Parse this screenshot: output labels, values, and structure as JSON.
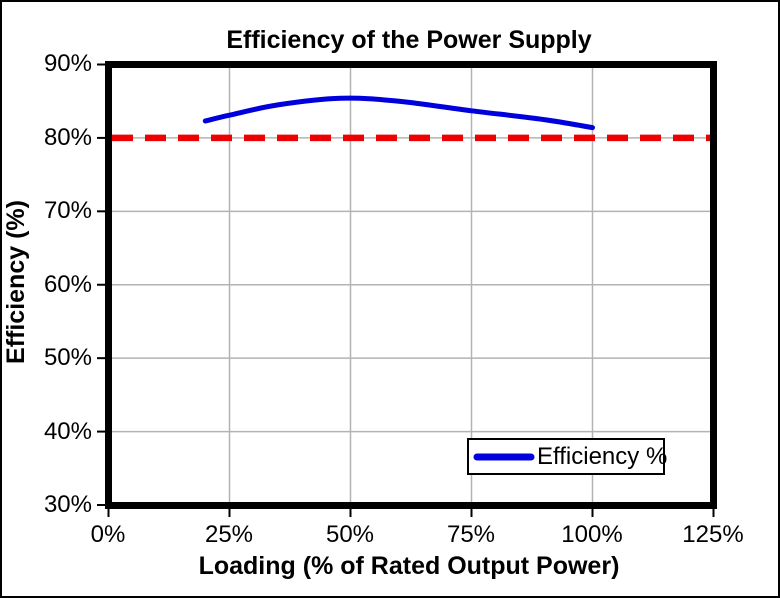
{
  "chart_data": {
    "type": "line",
    "title": "Efficiency of the Power Supply",
    "xlabel": "Loading (% of Rated Output Power)",
    "ylabel": "Efficiency (%)",
    "xlim": [
      0,
      125
    ],
    "ylim": [
      30,
      90
    ],
    "xticks": [
      "0%",
      "25%",
      "50%",
      "75%",
      "100%",
      "125%"
    ],
    "xtick_values": [
      0,
      25,
      50,
      75,
      100,
      125
    ],
    "yticks": [
      "90%",
      "80%",
      "70%",
      "60%",
      "50%",
      "40%",
      "30%"
    ],
    "ytick_values": [
      90,
      80,
      70,
      60,
      50,
      40,
      30
    ],
    "grid": true,
    "gridline_color": "#B3B3B3",
    "plot_border_color": "#000000",
    "background_color": "#FFFFFF",
    "legend": {
      "position": "bottom-right-inside",
      "entries": [
        "Efficiency %"
      ]
    },
    "series": [
      {
        "name": "Efficiency %",
        "type": "smooth-line",
        "color": "#0000DD",
        "stroke_width": 5,
        "points": [
          {
            "x": 20,
            "y": 82.3
          },
          {
            "x": 25,
            "y": 83.1
          },
          {
            "x": 35,
            "y": 84.5
          },
          {
            "x": 48,
            "y": 85.4
          },
          {
            "x": 60,
            "y": 85.0
          },
          {
            "x": 75,
            "y": 83.7
          },
          {
            "x": 90,
            "y": 82.5
          },
          {
            "x": 100,
            "y": 81.4
          }
        ]
      },
      {
        "name": "80% reference level",
        "type": "horizontal-dashed-line",
        "color": "#EE0000",
        "stroke_width": 6.5,
        "dash": [
          21,
          12
        ],
        "y": 80
      }
    ]
  }
}
